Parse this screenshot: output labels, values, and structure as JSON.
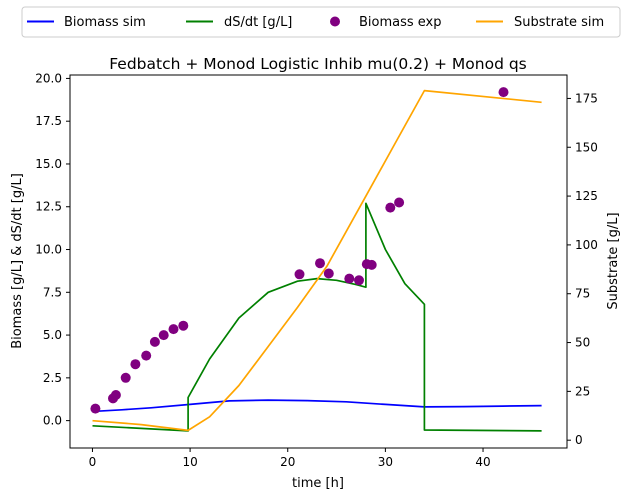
{
  "chart_data": {
    "type": "line",
    "title": "Fedbatch + Monod Logistic Inhib mu(0.2) + Monod qs",
    "xlabel": "time [h]",
    "ylabel_left": "Biomass [g/L] & dS/dt [g/L]",
    "ylabel_right": "Substrate [g/L]",
    "xlim": [
      -2.3,
      48.6
    ],
    "ylim_left": [
      -1.6,
      20.2
    ],
    "ylim_right": [
      -4,
      187
    ],
    "x_ticks": [
      0,
      10,
      20,
      30,
      40
    ],
    "y_ticks_left": [
      0.0,
      2.5,
      5.0,
      7.5,
      10.0,
      12.5,
      15.0,
      17.5,
      20.0
    ],
    "y_ticks_right": [
      0,
      25,
      50,
      75,
      100,
      125,
      150,
      175
    ],
    "legend_position": "top-center",
    "legend": [
      {
        "label": "Biomass sim",
        "color": "#0000ff",
        "kind": "line"
      },
      {
        "label": "dS/dt [g/L]",
        "color": "#008000",
        "kind": "line"
      },
      {
        "label": "Biomass exp",
        "color": "#800080",
        "kind": "marker"
      },
      {
        "label": "Substrate sim",
        "color": "#ffa500",
        "kind": "line"
      }
    ],
    "series": [
      {
        "name": "Biomass sim",
        "axis": "left",
        "color": "#0000ff",
        "kind": "line",
        "x": [
          0.5,
          3,
          6,
          10,
          14,
          18,
          22,
          26,
          30,
          34,
          38,
          42,
          46
        ],
        "y": [
          0.55,
          0.63,
          0.75,
          0.95,
          1.15,
          1.2,
          1.17,
          1.1,
          0.95,
          0.8,
          0.82,
          0.85,
          0.88
        ]
      },
      {
        "name": "dS/dt [g/L]",
        "axis": "left",
        "color": "#008000",
        "kind": "line",
        "x": [
          0,
          9.8,
          9.8,
          12,
          15,
          18,
          21,
          23,
          25,
          27,
          28,
          28,
          30,
          32,
          34,
          34,
          46
        ],
        "y": [
          -0.3,
          -0.6,
          1.35,
          3.6,
          6.0,
          7.5,
          8.15,
          8.3,
          8.2,
          7.95,
          7.8,
          12.7,
          10.0,
          8.0,
          6.8,
          -0.55,
          -0.6
        ]
      },
      {
        "name": "Biomass exp",
        "axis": "left",
        "color": "#800080",
        "kind": "scatter",
        "x": [
          0.3,
          2.1,
          2.4,
          3.4,
          4.4,
          5.5,
          6.4,
          7.3,
          8.3,
          9.3,
          21.2,
          23.3,
          24.2,
          26.3,
          27.3,
          28.1,
          28.6,
          30.5,
          31.4,
          42.1
        ],
        "y": [
          0.7,
          1.3,
          1.5,
          2.5,
          3.3,
          3.8,
          4.6,
          5.0,
          5.35,
          5.55,
          8.55,
          9.2,
          8.6,
          8.3,
          8.2,
          9.15,
          9.1,
          12.45,
          12.75,
          19.2
        ]
      },
      {
        "name": "Substrate sim",
        "axis": "right",
        "color": "#ffa500",
        "kind": "line",
        "x": [
          0,
          5,
          9.8,
          12,
          15,
          18,
          21,
          24,
          28,
          31,
          34,
          46
        ],
        "y": [
          10,
          8,
          5,
          12,
          28,
          48,
          68,
          89,
          125,
          152,
          179,
          173
        ]
      }
    ]
  }
}
